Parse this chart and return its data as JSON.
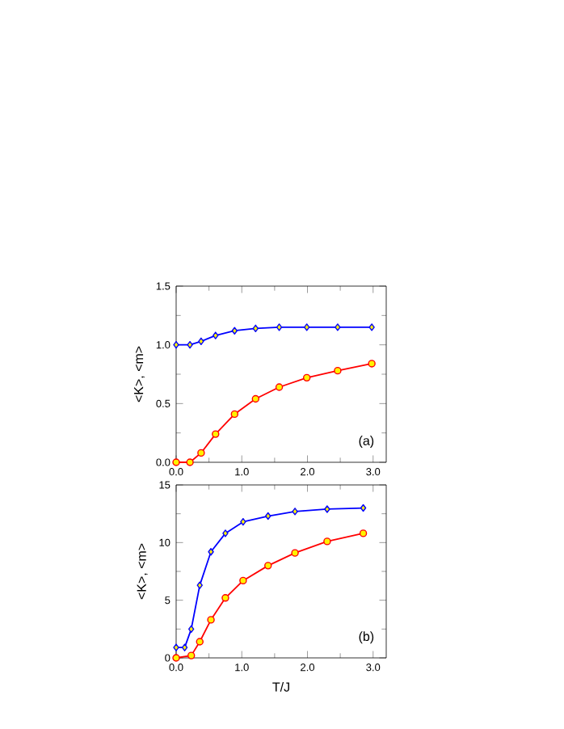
{
  "chart_data": [
    {
      "type": "line",
      "ylabel": "<K>, <m>",
      "annotations": [
        "(a)"
      ],
      "xlim": [
        0,
        3.2
      ],
      "ylim": [
        0,
        1.5
      ],
      "xticks": [
        {
          "value": 0,
          "label": "0.0"
        },
        {
          "value": 1,
          "label": "1.0"
        },
        {
          "value": 2,
          "label": "2.0"
        },
        {
          "value": 3,
          "label": "3.0"
        }
      ],
      "yticks": [
        {
          "value": 0,
          "label": "0.0"
        },
        {
          "value": 0.5,
          "label": "0.5"
        },
        {
          "value": 1,
          "label": "1.0"
        },
        {
          "value": 1.5,
          "label": "1.5"
        }
      ],
      "grid": false,
      "series": [
        {
          "color": "#0000ff",
          "marker": "diamond",
          "x": [
            0,
            0.21,
            0.38,
            0.6,
            0.89,
            1.21,
            1.57,
            1.99,
            2.46,
            2.98
          ],
          "values": [
            1.0,
            1.0,
            1.03,
            1.08,
            1.12,
            1.14,
            1.15,
            1.15,
            1.15,
            1.15
          ]
        },
        {
          "color": "#ff0000",
          "marker": "circle",
          "x": [
            0,
            0.21,
            0.38,
            0.6,
            0.89,
            1.21,
            1.57,
            1.99,
            2.46,
            2.98
          ],
          "values": [
            0.0,
            0.0,
            0.08,
            0.24,
            0.41,
            0.54,
            0.64,
            0.72,
            0.78,
            0.84
          ]
        }
      ]
    },
    {
      "type": "line",
      "xlabel": "T/J",
      "ylabel": "<K>, <m>",
      "annotations": [
        "(b)"
      ],
      "xlim": [
        0,
        3.2
      ],
      "ylim": [
        0,
        15
      ],
      "xticks": [
        {
          "value": 0,
          "label": "0.0"
        },
        {
          "value": 1,
          "label": "1.0"
        },
        {
          "value": 2,
          "label": "2.0"
        },
        {
          "value": 3,
          "label": "3.0"
        }
      ],
      "yticks": [
        0,
        5,
        10,
        15
      ],
      "grid": false,
      "series": [
        {
          "color": "#0000ff",
          "marker": "diamond",
          "x": [
            0,
            0.13,
            0.23,
            0.36,
            0.53,
            0.75,
            1.02,
            1.4,
            1.81,
            2.3,
            2.85
          ],
          "values": [
            0.9,
            0.9,
            2.5,
            6.3,
            9.2,
            10.8,
            11.8,
            12.3,
            12.7,
            12.9,
            13.0
          ]
        },
        {
          "color": "#ff0000",
          "marker": "circle",
          "x": [
            0,
            0.23,
            0.36,
            0.53,
            0.75,
            1.02,
            1.4,
            1.81,
            2.3,
            2.85
          ],
          "values": [
            0.0,
            0.2,
            1.4,
            3.3,
            5.2,
            6.7,
            8.0,
            9.1,
            10.1,
            10.8
          ]
        }
      ]
    }
  ]
}
